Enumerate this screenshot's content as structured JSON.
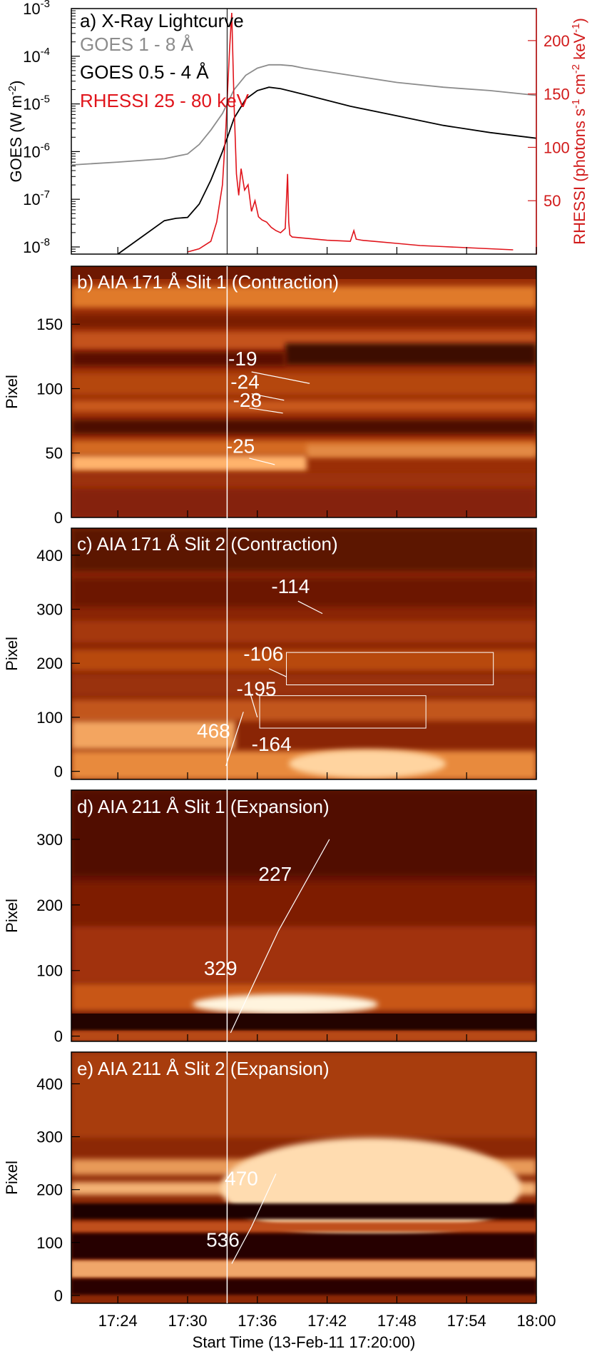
{
  "colors": {
    "goes_long": "#8c8c8c",
    "goes_short": "#000000",
    "rhessi": "#e0141b",
    "rhessi_axis": "#d11a1a",
    "map_dark": "#3a0500",
    "map_mid": "#b33c0c",
    "map_bright": "#ffe8c8"
  },
  "x_axis": {
    "title": "Start Time (13-Feb-11 17:20:00)",
    "start_min": 0,
    "end_min": 40,
    "ticks": [
      {
        "min": 4,
        "label": "17:24"
      },
      {
        "min": 10,
        "label": "17:30"
      },
      {
        "min": 16,
        "label": "17:36"
      },
      {
        "min": 22,
        "label": "17:42"
      },
      {
        "min": 28,
        "label": "17:48"
      },
      {
        "min": 34,
        "label": "17:54"
      },
      {
        "min": 40,
        "label": "18:00"
      }
    ],
    "marker_min": 13.4
  },
  "chart_data": [
    {
      "id": "a",
      "type": "line",
      "title": "a) X-Ray Lightcurve",
      "ylabel": "GOES (W m",
      "ylabel_sup": "-2",
      "ylabel_close": ")",
      "y2label": "RHESSI (photons s",
      "y2label_sup1": "-1",
      "y2label_mid": " cm",
      "y2label_sup2": "-2",
      "y2label_mid2": " keV",
      "y2label_sup3": "-1",
      "y2label_close": ")",
      "yscale": "log",
      "ylim_exp": [
        -8.15,
        -3
      ],
      "y_ticks": [
        {
          "exp": -3,
          "label": "10",
          "sup": "-3"
        },
        {
          "exp": -4,
          "label": "10",
          "sup": "-4"
        },
        {
          "exp": -5,
          "label": "10",
          "sup": "-5"
        },
        {
          "exp": -6,
          "label": "10",
          "sup": "-6"
        },
        {
          "exp": -7,
          "label": "10",
          "sup": "-7"
        },
        {
          "exp": -8,
          "label": "10",
          "sup": "-8"
        }
      ],
      "y2lim": [
        0,
        230
      ],
      "y2_ticks": [
        {
          "value": 50,
          "label": "50"
        },
        {
          "value": 100,
          "label": "100"
        },
        {
          "value": 150,
          "label": "150"
        },
        {
          "value": 200,
          "label": "200"
        }
      ],
      "series": [
        {
          "name": "GOES 1 - 8 Å",
          "axis": "left",
          "x": [
            0,
            4,
            8,
            10,
            11,
            12,
            13,
            13.5,
            14,
            15,
            16,
            17,
            18,
            19,
            20,
            24,
            28,
            32,
            36,
            40
          ],
          "y_exp": [
            -6.28,
            -6.22,
            -6.15,
            -6.05,
            -5.85,
            -5.55,
            -5.2,
            -4.95,
            -4.7,
            -4.4,
            -4.25,
            -4.18,
            -4.18,
            -4.2,
            -4.25,
            -4.4,
            -4.55,
            -4.65,
            -4.72,
            -4.82
          ]
        },
        {
          "name": "GOES 0.5 - 4 Å",
          "axis": "left",
          "x": [
            4,
            6,
            8,
            9,
            10,
            11,
            12,
            13,
            14,
            15,
            16,
            17,
            18,
            20,
            24,
            28,
            32,
            36,
            40
          ],
          "y_exp": [
            -8.15,
            -7.8,
            -7.45,
            -7.4,
            -7.38,
            -7.1,
            -6.6,
            -6.0,
            -5.3,
            -4.9,
            -4.72,
            -4.65,
            -4.68,
            -4.8,
            -5.05,
            -5.25,
            -5.45,
            -5.6,
            -5.72
          ]
        },
        {
          "name": "RHESSI 25 - 80 keV",
          "axis": "right",
          "x": [
            10,
            11,
            12,
            12.5,
            13,
            13.3,
            13.6,
            13.8,
            14,
            14.2,
            14.4,
            14.6,
            14.9,
            15.2,
            15.5,
            15.8,
            16.1,
            16.4,
            16.8,
            17.2,
            17.6,
            18,
            18.4,
            18.6,
            18.7,
            18.8,
            19,
            20,
            21,
            22,
            24,
            24.3,
            24.5,
            25,
            26,
            28,
            30,
            32,
            34,
            36,
            38
          ],
          "y": [
            2,
            5,
            12,
            30,
            65,
            120,
            190,
            226,
            140,
            75,
            55,
            80,
            60,
            65,
            40,
            50,
            35,
            32,
            30,
            25,
            22,
            20,
            24,
            75,
            30,
            18,
            16,
            15,
            14,
            13,
            12,
            22,
            14,
            13,
            12,
            10,
            8,
            7,
            6,
            5,
            4
          ]
        }
      ]
    },
    {
      "id": "b",
      "type": "heatmap",
      "title": "b) AIA 171 Å Slit 1 (Contraction)",
      "ylabel": "Pixel",
      "ylim": [
        0,
        195
      ],
      "y_ticks": [
        0,
        50,
        100,
        150
      ],
      "annotations": [
        {
          "label": "-19",
          "x": 13.5,
          "y": 118
        },
        {
          "label": "-24",
          "x": 13.7,
          "y": 100
        },
        {
          "label": "-28",
          "x": 13.9,
          "y": 86
        },
        {
          "label": "-25",
          "x": 13.3,
          "y": 50
        }
      ],
      "speed_lines": [
        {
          "x0": 15.5,
          "y0": 113,
          "x1": 20.5,
          "y1": 104
        },
        {
          "x0": 15.5,
          "y0": 96,
          "x1": 18.3,
          "y1": 91
        },
        {
          "x0": 15.3,
          "y0": 85,
          "x1": 18.2,
          "y1": 81
        },
        {
          "x0": 15.3,
          "y0": 46,
          "x1": 17.5,
          "y1": 41
        }
      ]
    },
    {
      "id": "c",
      "type": "heatmap",
      "title": "c) AIA 171 Å Slit 2 (Contraction)",
      "ylabel": "Pixel",
      "ylim": [
        -15,
        450
      ],
      "y_ticks": [
        0,
        100,
        200,
        300,
        400
      ],
      "annotations": [
        {
          "label": "-114",
          "x": 17.2,
          "y": 330
        },
        {
          "label": "-106",
          "x": 14.8,
          "y": 205
        },
        {
          "label": "-195",
          "x": 14.2,
          "y": 140
        },
        {
          "label": "468",
          "x": 10.8,
          "y": 62
        },
        {
          "label": "-164",
          "x": 15.5,
          "y": 38
        }
      ],
      "boxes": [
        {
          "x0": 18.5,
          "y0": 160,
          "x1": 36.3,
          "y1": 220
        },
        {
          "x0": 16.2,
          "y0": 80,
          "x1": 30.5,
          "y1": 140
        }
      ],
      "speed_lines": [
        {
          "x0": 19.5,
          "y0": 315,
          "x1": 21.6,
          "y1": 292
        },
        {
          "x0": 17.0,
          "y0": 190,
          "x1": 18.5,
          "y1": 175
        },
        {
          "x0": 15.3,
          "y0": 150,
          "x1": 16.0,
          "y1": 100
        },
        {
          "x0": 13.3,
          "y0": 10,
          "x1": 14.8,
          "y1": 110
        }
      ]
    },
    {
      "id": "d",
      "type": "heatmap",
      "title": "d) AIA 211 Å Slit 1 (Expansion)",
      "ylabel": "Pixel",
      "ylim": [
        -8,
        375
      ],
      "y_ticks": [
        0,
        100,
        200,
        300
      ],
      "annotations": [
        {
          "label": "227",
          "x": 16.1,
          "y": 237
        },
        {
          "label": "329",
          "x": 11.4,
          "y": 93
        }
      ],
      "speed_lines": [
        {
          "x0": 13.7,
          "y0": 5,
          "x1": 17.8,
          "y1": 160
        },
        {
          "x0": 17.8,
          "y0": 160,
          "x1": 22.2,
          "y1": 300
        }
      ]
    },
    {
      "id": "e",
      "type": "heatmap",
      "title": "e) AIA 211 Å Slit 2 (Expansion)",
      "ylabel": "Pixel",
      "ylim": [
        -15,
        460
      ],
      "y_ticks": [
        0,
        100,
        200,
        300,
        400
      ],
      "annotations": [
        {
          "label": "470",
          "x": 13.2,
          "y": 208
        },
        {
          "label": "536",
          "x": 11.6,
          "y": 92
        }
      ],
      "speed_lines": [
        {
          "x0": 13.8,
          "y0": 60,
          "x1": 15.5,
          "y1": 130
        },
        {
          "x0": 15.5,
          "y0": 130,
          "x1": 17.6,
          "y1": 230
        }
      ]
    }
  ]
}
